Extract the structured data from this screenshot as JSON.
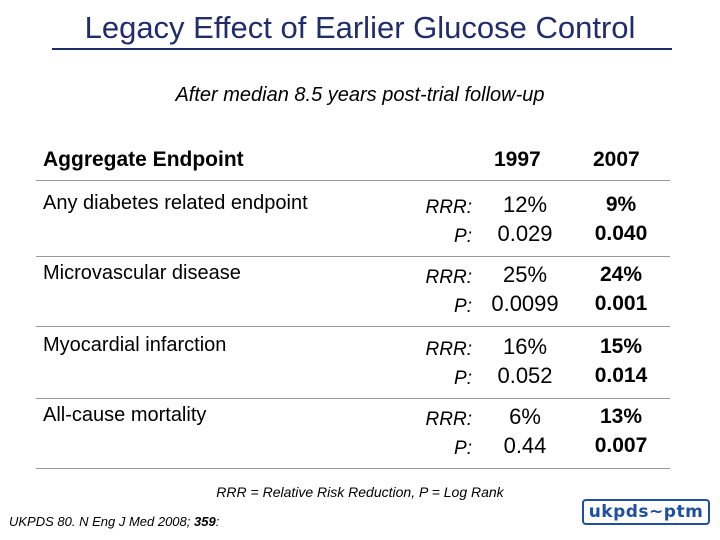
{
  "slide": {
    "title": "Legacy Effect of Earlier Glucose Control",
    "subtitle": "After median 8.5 years post-trial follow-up"
  },
  "table": {
    "headers": {
      "endpoint": "Aggregate Endpoint",
      "col1": "1997",
      "col2": "2007"
    },
    "labels": {
      "rrr": "RRR:",
      "p": "P:"
    },
    "rows": [
      {
        "name": "Any diabetes related endpoint",
        "rrr_1997": "12%",
        "p_1997": "0.029",
        "rrr_2007": "9%",
        "p_2007": "0.040"
      },
      {
        "name": "Microvascular disease",
        "rrr_1997": "25%",
        "p_1997": "0.0099",
        "rrr_2007": "24%",
        "p_2007": "0.001"
      },
      {
        "name": "Myocardial infarction",
        "rrr_1997": "16%",
        "p_1997": "0.052",
        "rrr_2007": "15%",
        "p_2007": "0.014"
      },
      {
        "name": "All-cause mortality",
        "rrr_1997": "6%",
        "p_1997": "0.44",
        "rrr_2007": "13%",
        "p_2007": "0.007"
      }
    ]
  },
  "footnote": "RRR = Relative Risk Reduction, P = Log Rank",
  "citation": {
    "text": "UKPDS 80. N Eng J Med 2008; ",
    "volume": "359",
    "end": ":"
  },
  "logo": {
    "text": "ukpds~ptm"
  },
  "colors": {
    "title": "#1f2d6b",
    "logo": "#1f4fa0",
    "rule": "#9a9a9a"
  }
}
